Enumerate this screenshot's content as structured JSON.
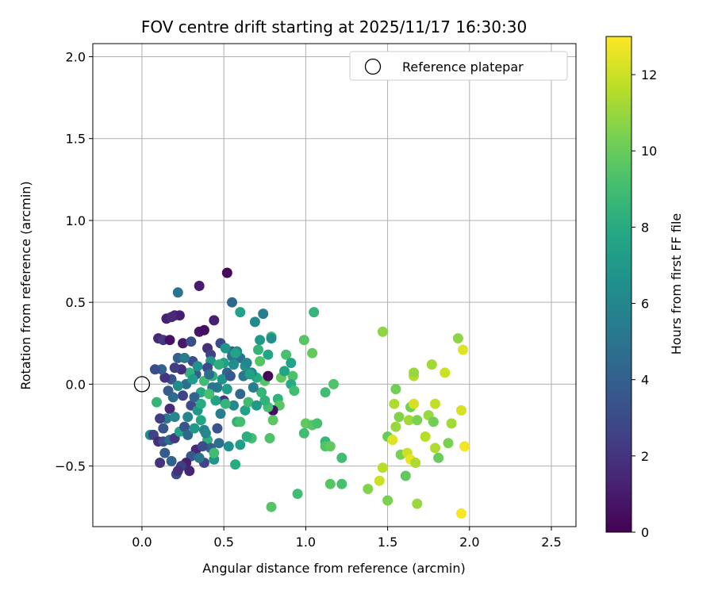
{
  "chart_data": {
    "type": "scatter",
    "title": "FOV centre drift starting at 2025/11/17 16:30:30",
    "xlabel": "Angular distance from reference (arcmin)",
    "ylabel": "Rotation from reference (arcmin)",
    "xlim": [
      -0.3,
      2.65
    ],
    "ylim": [
      -0.87,
      2.08
    ],
    "xticks": [
      "0.0",
      "0.5",
      "1.0",
      "1.5",
      "2.0",
      "2.5"
    ],
    "xtick_values": [
      0,
      0.5,
      1.0,
      1.5,
      2.0,
      2.5
    ],
    "yticks": [
      "2.0",
      "1.5",
      "1.0",
      "0.5",
      "0.0",
      "−0.5"
    ],
    "ytick_values": [
      2.0,
      1.5,
      1.0,
      0.5,
      0.0,
      -0.5
    ],
    "grid": true,
    "legend": {
      "label": "Reference platepar",
      "placement": "top-right"
    },
    "reference_point": {
      "x": 0.0,
      "y": 0.0
    },
    "colorbar": {
      "label": "Hours from first FF file",
      "colormap": "viridis",
      "range": [
        0,
        13
      ],
      "ticks": [
        "0",
        "2",
        "4",
        "6",
        "8",
        "10",
        "12"
      ],
      "tick_values": [
        0,
        2,
        4,
        6,
        8,
        10,
        12
      ]
    },
    "points": [
      {
        "x": 0.52,
        "y": 0.68,
        "h": 0.2
      },
      {
        "x": 0.35,
        "y": 0.6,
        "h": 1.0
      },
      {
        "x": 0.15,
        "y": 0.4,
        "h": 1.2
      },
      {
        "x": 0.2,
        "y": 0.42,
        "h": 1.4
      },
      {
        "x": 0.23,
        "y": 0.42,
        "h": 1.1
      },
      {
        "x": 0.18,
        "y": 0.41,
        "h": 1.6
      },
      {
        "x": 0.35,
        "y": 0.32,
        "h": 0.8
      },
      {
        "x": 0.38,
        "y": 0.33,
        "h": 0.5
      },
      {
        "x": 0.44,
        "y": 0.39,
        "h": 1.2
      },
      {
        "x": 0.1,
        "y": 0.28,
        "h": 1.5
      },
      {
        "x": 0.13,
        "y": 0.27,
        "h": 2.2
      },
      {
        "x": 0.17,
        "y": 0.27,
        "h": 0.6
      },
      {
        "x": 0.25,
        "y": 0.25,
        "h": 0.9
      },
      {
        "x": 0.3,
        "y": 0.26,
        "h": 3.2
      },
      {
        "x": 0.4,
        "y": 0.22,
        "h": 1.8
      },
      {
        "x": 0.42,
        "y": 0.18,
        "h": 2.5
      },
      {
        "x": 0.48,
        "y": 0.25,
        "h": 3.0
      },
      {
        "x": 0.55,
        "y": 0.2,
        "h": 3.6
      },
      {
        "x": 0.22,
        "y": 0.56,
        "h": 5.0
      },
      {
        "x": 0.55,
        "y": 0.5,
        "h": 4.5
      },
      {
        "x": 0.6,
        "y": 0.44,
        "h": 7.5
      },
      {
        "x": 0.74,
        "y": 0.43,
        "h": 5.5
      },
      {
        "x": 0.69,
        "y": 0.38,
        "h": 6.2
      },
      {
        "x": 0.79,
        "y": 0.29,
        "h": 9.2
      },
      {
        "x": 0.72,
        "y": 0.27,
        "h": 7.0
      },
      {
        "x": 0.71,
        "y": 0.21,
        "h": 8.5
      },
      {
        "x": 0.72,
        "y": 0.14,
        "h": 9.5
      },
      {
        "x": 0.77,
        "y": 0.18,
        "h": 7.8
      },
      {
        "x": 0.79,
        "y": 0.28,
        "h": 6.5
      },
      {
        "x": 0.88,
        "y": 0.18,
        "h": 9.2
      },
      {
        "x": 0.91,
        "y": 0.13,
        "h": 7.5
      },
      {
        "x": 0.92,
        "y": 0.05,
        "h": 9.3
      },
      {
        "x": 0.99,
        "y": 0.27,
        "h": 9.6
      },
      {
        "x": 1.05,
        "y": 0.44,
        "h": 8.6
      },
      {
        "x": 1.04,
        "y": 0.19,
        "h": 9.9
      },
      {
        "x": 0.91,
        "y": 0.0,
        "h": 8.0
      },
      {
        "x": 0.93,
        "y": -0.04,
        "h": 9.0
      },
      {
        "x": 0.85,
        "y": 0.04,
        "h": 9.8
      },
      {
        "x": 0.87,
        "y": 0.08,
        "h": 7.7
      },
      {
        "x": 0.83,
        "y": -0.09,
        "h": 8.4
      },
      {
        "x": 0.84,
        "y": -0.13,
        "h": 9.6
      },
      {
        "x": 0.8,
        "y": -0.16,
        "h": 0.5
      },
      {
        "x": 0.8,
        "y": -0.22,
        "h": 9.7
      },
      {
        "x": 0.77,
        "y": -0.14,
        "h": 9.1
      },
      {
        "x": 0.75,
        "y": -0.1,
        "h": 8.4
      },
      {
        "x": 0.78,
        "y": -0.33,
        "h": 9.4
      },
      {
        "x": 0.67,
        "y": -0.33,
        "h": 9.0
      },
      {
        "x": 0.64,
        "y": -0.32,
        "h": 8.2
      },
      {
        "x": 0.6,
        "y": -0.37,
        "h": 7.3
      },
      {
        "x": 0.57,
        "y": -0.49,
        "h": 8.0
      },
      {
        "x": 0.53,
        "y": -0.38,
        "h": 6.5
      },
      {
        "x": 0.58,
        "y": -0.23,
        "h": 8.4
      },
      {
        "x": 0.6,
        "y": -0.23,
        "h": 9.1
      },
      {
        "x": 0.63,
        "y": -0.16,
        "h": 7.6
      },
      {
        "x": 0.65,
        "y": -0.11,
        "h": 8.9
      },
      {
        "x": 0.7,
        "y": -0.13,
        "h": 7.0
      },
      {
        "x": 0.73,
        "y": -0.05,
        "h": 8.6
      },
      {
        "x": 0.75,
        "y": 0.02,
        "h": 9.5
      },
      {
        "x": 0.77,
        "y": 0.05,
        "h": 0.3
      },
      {
        "x": 0.7,
        "y": 0.04,
        "h": 8.0
      },
      {
        "x": 0.67,
        "y": 0.07,
        "h": 5.8
      },
      {
        "x": 0.63,
        "y": 0.11,
        "h": 6.6
      },
      {
        "x": 0.6,
        "y": 0.16,
        "h": 4.9
      },
      {
        "x": 0.58,
        "y": 0.2,
        "h": 6.2
      },
      {
        "x": 0.55,
        "y": 0.17,
        "h": 5.0
      },
      {
        "x": 0.52,
        "y": 0.07,
        "h": 4.3
      },
      {
        "x": 0.5,
        "y": 0.13,
        "h": 7.4
      },
      {
        "x": 0.49,
        "y": 0.03,
        "h": 6.7
      },
      {
        "x": 0.46,
        "y": -0.02,
        "h": 5.4
      },
      {
        "x": 0.43,
        "y": 0.05,
        "h": 8.3
      },
      {
        "x": 0.42,
        "y": 0.14,
        "h": 7.0
      },
      {
        "x": 0.4,
        "y": 0.1,
        "h": 2.8
      },
      {
        "x": 0.38,
        "y": 0.02,
        "h": 9.0
      },
      {
        "x": 0.36,
        "y": -0.05,
        "h": 7.9
      },
      {
        "x": 0.33,
        "y": 0.06,
        "h": 3.9
      },
      {
        "x": 0.31,
        "y": 0.14,
        "h": 3.0
      },
      {
        "x": 0.29,
        "y": 0.07,
        "h": 8.4
      },
      {
        "x": 0.27,
        "y": 0.0,
        "h": 4.8
      },
      {
        "x": 0.25,
        "y": -0.07,
        "h": 2.6
      },
      {
        "x": 0.24,
        "y": 0.09,
        "h": 1.8
      },
      {
        "x": 0.22,
        "y": 0.16,
        "h": 4.0
      },
      {
        "x": 0.2,
        "y": 0.1,
        "h": 2.4
      },
      {
        "x": 0.18,
        "y": 0.03,
        "h": 3.4
      },
      {
        "x": 0.16,
        "y": -0.04,
        "h": 3.8
      },
      {
        "x": 0.14,
        "y": 0.04,
        "h": 2.0
      },
      {
        "x": 0.12,
        "y": 0.09,
        "h": 4.2
      },
      {
        "x": 0.08,
        "y": 0.09,
        "h": 3.0
      },
      {
        "x": 0.19,
        "y": -0.08,
        "h": 4.6
      },
      {
        "x": 0.17,
        "y": -0.15,
        "h": 1.6
      },
      {
        "x": 0.15,
        "y": -0.21,
        "h": 5.2
      },
      {
        "x": 0.13,
        "y": -0.27,
        "h": 3.5
      },
      {
        "x": 0.11,
        "y": -0.21,
        "h": 2.4
      },
      {
        "x": 0.09,
        "y": -0.11,
        "h": 8.6
      },
      {
        "x": 0.05,
        "y": -0.31,
        "h": 6.4
      },
      {
        "x": 0.07,
        "y": -0.31,
        "h": 2.6
      },
      {
        "x": 0.1,
        "y": -0.35,
        "h": 1.8
      },
      {
        "x": 0.13,
        "y": -0.35,
        "h": 3.0
      },
      {
        "x": 0.17,
        "y": -0.34,
        "h": 4.6
      },
      {
        "x": 0.2,
        "y": -0.33,
        "h": 2.2
      },
      {
        "x": 0.23,
        "y": -0.29,
        "h": 7.6
      },
      {
        "x": 0.26,
        "y": -0.26,
        "h": 3.4
      },
      {
        "x": 0.28,
        "y": -0.2,
        "h": 5.9
      },
      {
        "x": 0.3,
        "y": -0.13,
        "h": 2.9
      },
      {
        "x": 0.32,
        "y": -0.08,
        "h": 4.1
      },
      {
        "x": 0.34,
        "y": -0.16,
        "h": 6.9
      },
      {
        "x": 0.36,
        "y": -0.22,
        "h": 7.8
      },
      {
        "x": 0.38,
        "y": -0.28,
        "h": 5.7
      },
      {
        "x": 0.4,
        "y": -0.34,
        "h": 8.3
      },
      {
        "x": 0.42,
        "y": -0.39,
        "h": 4.0
      },
      {
        "x": 0.44,
        "y": -0.46,
        "h": 6.8
      },
      {
        "x": 0.38,
        "y": -0.48,
        "h": 2.7
      },
      {
        "x": 0.33,
        "y": -0.4,
        "h": 1.6
      },
      {
        "x": 0.3,
        "y": -0.44,
        "h": 3.6
      },
      {
        "x": 0.27,
        "y": -0.48,
        "h": 1.2
      },
      {
        "x": 0.24,
        "y": -0.5,
        "h": 2.4
      },
      {
        "x": 0.21,
        "y": -0.55,
        "h": 3.2
      },
      {
        "x": 0.18,
        "y": -0.47,
        "h": 4.2
      },
      {
        "x": 0.14,
        "y": -0.42,
        "h": 3.8
      },
      {
        "x": 0.11,
        "y": -0.48,
        "h": 2.0
      },
      {
        "x": 0.22,
        "y": -0.53,
        "h": 1.9
      },
      {
        "x": 0.29,
        "y": -0.53,
        "h": 1.4
      },
      {
        "x": 0.35,
        "y": -0.45,
        "h": 5.0
      },
      {
        "x": 0.37,
        "y": -0.38,
        "h": 3.0
      },
      {
        "x": 0.39,
        "y": -0.3,
        "h": 6.0
      },
      {
        "x": 0.47,
        "y": -0.36,
        "h": 4.8
      },
      {
        "x": 0.46,
        "y": -0.27,
        "h": 3.4
      },
      {
        "x": 0.48,
        "y": -0.18,
        "h": 5.6
      },
      {
        "x": 0.5,
        "y": -0.1,
        "h": 2.2
      },
      {
        "x": 0.52,
        "y": -0.03,
        "h": 7.2
      },
      {
        "x": 0.54,
        "y": 0.05,
        "h": 3.6
      },
      {
        "x": 0.56,
        "y": 0.12,
        "h": 6.4
      },
      {
        "x": 0.62,
        "y": 0.05,
        "h": 5.2
      },
      {
        "x": 0.64,
        "y": 0.13,
        "h": 6.0
      },
      {
        "x": 0.66,
        "y": 0.06,
        "h": 7.4
      },
      {
        "x": 0.68,
        "y": -0.02,
        "h": 5.6
      },
      {
        "x": 0.6,
        "y": -0.06,
        "h": 4.4
      },
      {
        "x": 0.56,
        "y": -0.13,
        "h": 6.2
      },
      {
        "x": 0.45,
        "y": -0.1,
        "h": 7.6
      },
      {
        "x": 0.43,
        "y": -0.02,
        "h": 5.0
      },
      {
        "x": 0.41,
        "y": 0.06,
        "h": 4.6
      },
      {
        "x": 0.34,
        "y": 0.11,
        "h": 6.6
      },
      {
        "x": 0.26,
        "y": 0.16,
        "h": 5.4
      },
      {
        "x": 0.22,
        "y": -0.01,
        "h": 6.2
      },
      {
        "x": 0.2,
        "y": -0.2,
        "h": 6.0
      },
      {
        "x": 0.28,
        "y": -0.31,
        "h": 4.4
      },
      {
        "x": 0.32,
        "y": -0.27,
        "h": 7.0
      },
      {
        "x": 0.36,
        "y": -0.12,
        "h": 8.0
      },
      {
        "x": 0.31,
        "y": 0.03,
        "h": 7.2
      },
      {
        "x": 0.47,
        "y": 0.12,
        "h": 8.2
      },
      {
        "x": 0.51,
        "y": 0.22,
        "h": 6.8
      },
      {
        "x": 0.57,
        "y": 0.19,
        "h": 7.6
      },
      {
        "x": 0.44,
        "y": -0.42,
        "h": 9.0
      },
      {
        "x": 0.51,
        "y": -0.12,
        "h": 8.6
      },
      {
        "x": 0.41,
        "y": -0.06,
        "h": 9.2
      },
      {
        "x": 0.79,
        "y": -0.75,
        "h": 9.5
      },
      {
        "x": 0.95,
        "y": -0.67,
        "h": 9.0
      },
      {
        "x": 1.0,
        "y": -0.24,
        "h": 9.8
      },
      {
        "x": 0.99,
        "y": -0.3,
        "h": 9.0
      },
      {
        "x": 1.04,
        "y": -0.25,
        "h": 9.6
      },
      {
        "x": 1.07,
        "y": -0.24,
        "h": 9.2
      },
      {
        "x": 1.12,
        "y": -0.35,
        "h": 8.6
      },
      {
        "x": 1.12,
        "y": -0.38,
        "h": 9.4
      },
      {
        "x": 1.15,
        "y": -0.38,
        "h": 9.8
      },
      {
        "x": 1.12,
        "y": -0.05,
        "h": 9.0
      },
      {
        "x": 1.17,
        "y": 0.0,
        "h": 9.4
      },
      {
        "x": 1.15,
        "y": -0.61,
        "h": 9.6
      },
      {
        "x": 1.22,
        "y": -0.61,
        "h": 9.2
      },
      {
        "x": 1.22,
        "y": -0.45,
        "h": 9.0
      },
      {
        "x": 1.38,
        "y": -0.64,
        "h": 10.6
      },
      {
        "x": 1.45,
        "y": -0.59,
        "h": 12.0
      },
      {
        "x": 1.47,
        "y": -0.51,
        "h": 11.6
      },
      {
        "x": 1.5,
        "y": -0.71,
        "h": 10.4
      },
      {
        "x": 1.47,
        "y": 0.32,
        "h": 10.8
      },
      {
        "x": 1.5,
        "y": -0.32,
        "h": 10.0
      },
      {
        "x": 1.53,
        "y": -0.34,
        "h": 12.4
      },
      {
        "x": 1.54,
        "y": -0.12,
        "h": 11.4
      },
      {
        "x": 1.55,
        "y": -0.26,
        "h": 11.0
      },
      {
        "x": 1.55,
        "y": -0.03,
        "h": 10.2
      },
      {
        "x": 1.57,
        "y": -0.2,
        "h": 10.6
      },
      {
        "x": 1.58,
        "y": -0.43,
        "h": 10.4
      },
      {
        "x": 1.61,
        "y": -0.56,
        "h": 9.8
      },
      {
        "x": 1.62,
        "y": -0.42,
        "h": 12.0
      },
      {
        "x": 1.64,
        "y": -0.46,
        "h": 12.6
      },
      {
        "x": 1.63,
        "y": -0.22,
        "h": 11.2
      },
      {
        "x": 1.64,
        "y": -0.14,
        "h": 10.2
      },
      {
        "x": 1.66,
        "y": -0.12,
        "h": 12.2
      },
      {
        "x": 1.66,
        "y": 0.05,
        "h": 11.6
      },
      {
        "x": 1.66,
        "y": 0.07,
        "h": 11.0
      },
      {
        "x": 1.67,
        "y": -0.48,
        "h": 11.4
      },
      {
        "x": 1.68,
        "y": -0.22,
        "h": 10.4
      },
      {
        "x": 1.68,
        "y": -0.73,
        "h": 11.0
      },
      {
        "x": 1.73,
        "y": -0.32,
        "h": 11.6
      },
      {
        "x": 1.75,
        "y": -0.19,
        "h": 11.0
      },
      {
        "x": 1.77,
        "y": 0.12,
        "h": 11.2
      },
      {
        "x": 1.78,
        "y": -0.23,
        "h": 10.2
      },
      {
        "x": 1.79,
        "y": -0.12,
        "h": 11.8
      },
      {
        "x": 1.79,
        "y": -0.39,
        "h": 11.4
      },
      {
        "x": 1.81,
        "y": -0.45,
        "h": 10.0
      },
      {
        "x": 1.85,
        "y": 0.07,
        "h": 12.0
      },
      {
        "x": 1.87,
        "y": -0.36,
        "h": 10.4
      },
      {
        "x": 1.89,
        "y": -0.24,
        "h": 11.2
      },
      {
        "x": 1.93,
        "y": 0.28,
        "h": 10.8
      },
      {
        "x": 1.95,
        "y": -0.16,
        "h": 12.2
      },
      {
        "x": 1.96,
        "y": 0.21,
        "h": 12.4
      },
      {
        "x": 1.97,
        "y": -0.38,
        "h": 12.8
      },
      {
        "x": 1.95,
        "y": -0.79,
        "h": 12.9
      }
    ]
  }
}
